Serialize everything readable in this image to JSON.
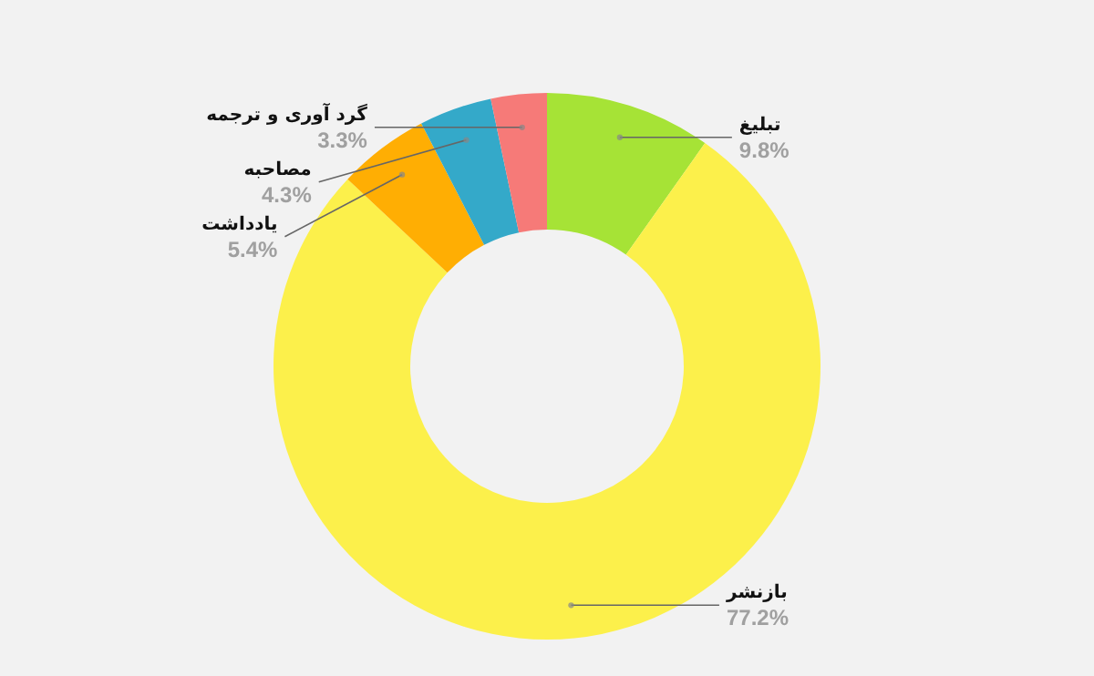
{
  "chart_data": {
    "type": "donut",
    "categories": [
      "تبلیغ",
      "بازنشر",
      "یادداشت",
      "مصاحبه",
      "گرد آوری و ترجمه"
    ],
    "values": [
      9.8,
      77.2,
      5.4,
      4.3,
      3.3
    ],
    "colors": [
      "#a6e336",
      "#fcf04b",
      "#ffae03",
      "#34a9c9",
      "#f67a78"
    ],
    "value_labels": [
      "9.8%",
      "77.2%",
      "5.4%",
      "4.3%",
      "3.3%"
    ]
  }
}
